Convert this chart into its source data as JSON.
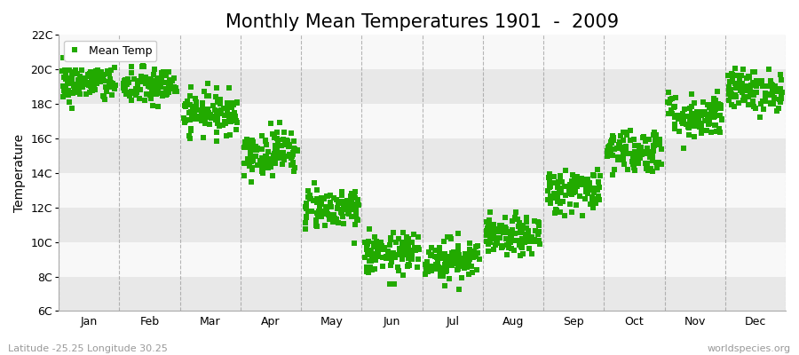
{
  "title": "Monthly Mean Temperatures 1901  -  2009",
  "ylabel": "Temperature",
  "subtitle_left": "Latitude -25.25 Longitude 30.25",
  "subtitle_right": "worldspecies.org",
  "ylim": [
    6,
    22
  ],
  "yticks": [
    6,
    8,
    10,
    12,
    14,
    16,
    18,
    20,
    22
  ],
  "ytick_labels": [
    "6C",
    "8C",
    "10C",
    "12C",
    "14C",
    "16C",
    "18C",
    "20C",
    "22C"
  ],
  "months": [
    "Jan",
    "Feb",
    "Mar",
    "Apr",
    "May",
    "Jun",
    "Jul",
    "Aug",
    "Sep",
    "Oct",
    "Nov",
    "Dec"
  ],
  "month_means": [
    19.2,
    19.0,
    17.5,
    15.2,
    12.0,
    9.3,
    9.0,
    10.3,
    13.0,
    15.3,
    17.3,
    18.8
  ],
  "month_stds": [
    0.55,
    0.55,
    0.6,
    0.65,
    0.6,
    0.6,
    0.6,
    0.55,
    0.65,
    0.65,
    0.65,
    0.6
  ],
  "n_years": 109,
  "marker_color": "#22aa00",
  "marker_size": 4.5,
  "band_color1": "#e8e8e8",
  "band_color2": "#f8f8f8",
  "grid_color": "#999999",
  "legend_label": "Mean Temp",
  "title_fontsize": 15,
  "axis_label_fontsize": 10,
  "tick_fontsize": 9
}
